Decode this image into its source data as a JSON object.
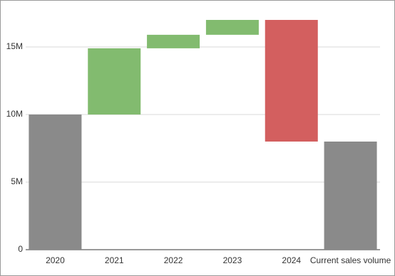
{
  "chart_data": {
    "type": "waterfall",
    "categories": [
      "2020",
      "2021",
      "2022",
      "2023",
      "2024",
      "Current sales volume"
    ],
    "values": [
      10000000,
      4900000,
      1000000,
      1100000,
      -9000000,
      8000000
    ],
    "is_total": [
      true,
      false,
      false,
      false,
      false,
      true
    ],
    "total_color": "#8a8a8a",
    "increase_color": "#82bb6f",
    "decrease_color": "#d35f5f",
    "ylim": [
      0,
      18000000
    ],
    "yticks": [
      {
        "value": 0,
        "label": "0"
      },
      {
        "value": 5000000,
        "label": "5M"
      },
      {
        "value": 10000000,
        "label": "10M"
      },
      {
        "value": 15000000,
        "label": "15M"
      }
    ],
    "grid": true
  }
}
